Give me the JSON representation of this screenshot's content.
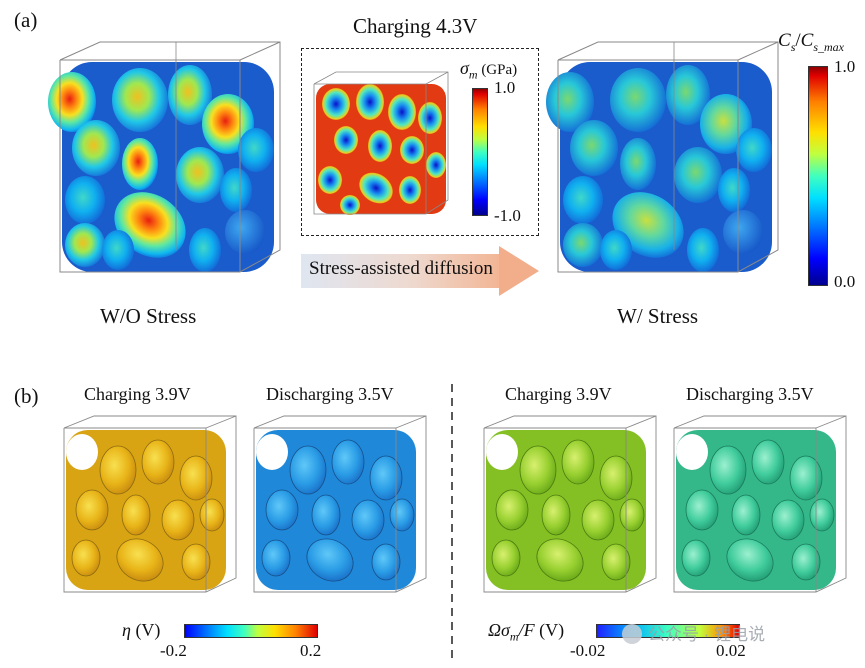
{
  "panel_a": {
    "tag": "(a)",
    "title": "Charging 4.3V",
    "left_label": "W/O Stress",
    "right_label": "W/ Stress",
    "arrow_text": "Stress-assisted diffusion",
    "inset_colorbar": {
      "symbol": "σ",
      "subscript": "m",
      "unit": " (GPa)",
      "max": "1.0",
      "min": "-1.0"
    },
    "main_colorbar": {
      "label_c": "C",
      "label_s": "s",
      "label_slash": "/",
      "label_c2": "C",
      "label_smax": "s_max",
      "max": "1.0",
      "min": "0.0"
    }
  },
  "panel_b": {
    "tag": "(b)",
    "titles": [
      "Charging 3.9V",
      "Discharging 3.5V",
      "Charging 3.9V",
      "Discharging 3.5V"
    ],
    "left_colorbar": {
      "symbol": "η",
      "unit": " (V)",
      "min": "-0.2",
      "max": "0.2"
    },
    "right_colorbar": {
      "label": "Ωσ",
      "subscript": "m",
      "label_tail": "/F",
      "unit": " (V)",
      "min": "-0.02",
      "max": "0.02"
    }
  },
  "watermark": "公众号 · 锂电说",
  "colors": {
    "jet_blue": "#1a6fe0",
    "jet_red": "#e02010",
    "eta_yellow": "#e8c018",
    "eta_blue": "#2aa0e8",
    "omega_green": "#8fcf30",
    "omega_teal": "#3fcf9a"
  }
}
